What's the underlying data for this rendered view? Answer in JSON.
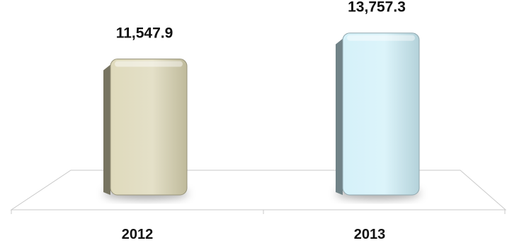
{
  "chart_data": {
    "type": "bar",
    "categories": [
      "2012",
      "2013"
    ],
    "values": [
      11547.9,
      13757.3
    ],
    "value_labels": [
      "11,547.9",
      "13,757.3"
    ],
    "colors": [
      "#d9d3b0",
      "#cdeff8"
    ],
    "title": "",
    "xlabel": "",
    "ylabel": "",
    "ylim": [
      0,
      15000
    ],
    "grid": false,
    "legend": "none"
  }
}
